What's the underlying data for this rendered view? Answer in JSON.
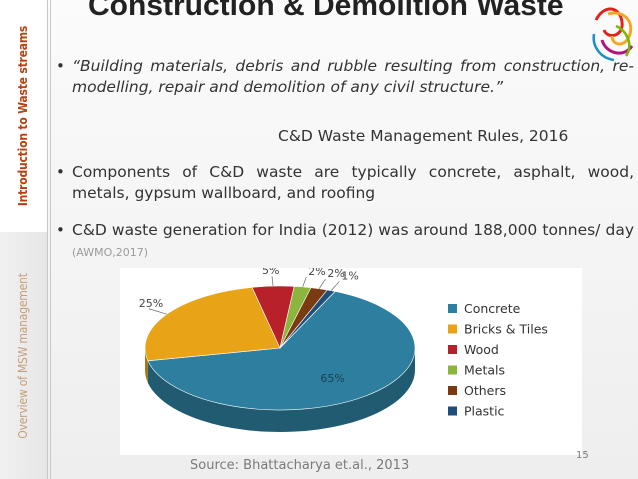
{
  "sidebar": {
    "top_label": "Introduction to Waste streams",
    "bottom_label": "Overview of MSW management"
  },
  "slide": {
    "title": "Construction & Demolition Waste",
    "bullets": [
      "“Building materials, debris and rubble resulting from construction, re-modelling, repair and demolition of any civil structure.”",
      "Components of C&D waste are typically concrete, asphalt, wood, metals, gypsum wallboard, and roofing",
      "C&D waste generation for India (2012) was around 188,000 tonnes/ day"
    ],
    "rule_citation": "C&D Waste Management Rules, 2016",
    "generation_citation": "(AWMO,2017)",
    "source": "Source: Bhattacharya et.al., 2013",
    "page_number": "15"
  },
  "chart_data": {
    "type": "pie",
    "title": "",
    "categories": [
      "Concrete",
      "Bricks & Tiles",
      "Wood",
      "Metals",
      "Others",
      "Plastic"
    ],
    "values": [
      65,
      25,
      5,
      2,
      2,
      1
    ],
    "labels": [
      "65%",
      "25%",
      "5%",
      "2%",
      "2%",
      "1%"
    ],
    "colors": [
      "#2e7f9f",
      "#e8a317",
      "#b8202a",
      "#8bb53c",
      "#7a3b12",
      "#1f4e79"
    ],
    "legend_position": "right",
    "three_d": true
  }
}
